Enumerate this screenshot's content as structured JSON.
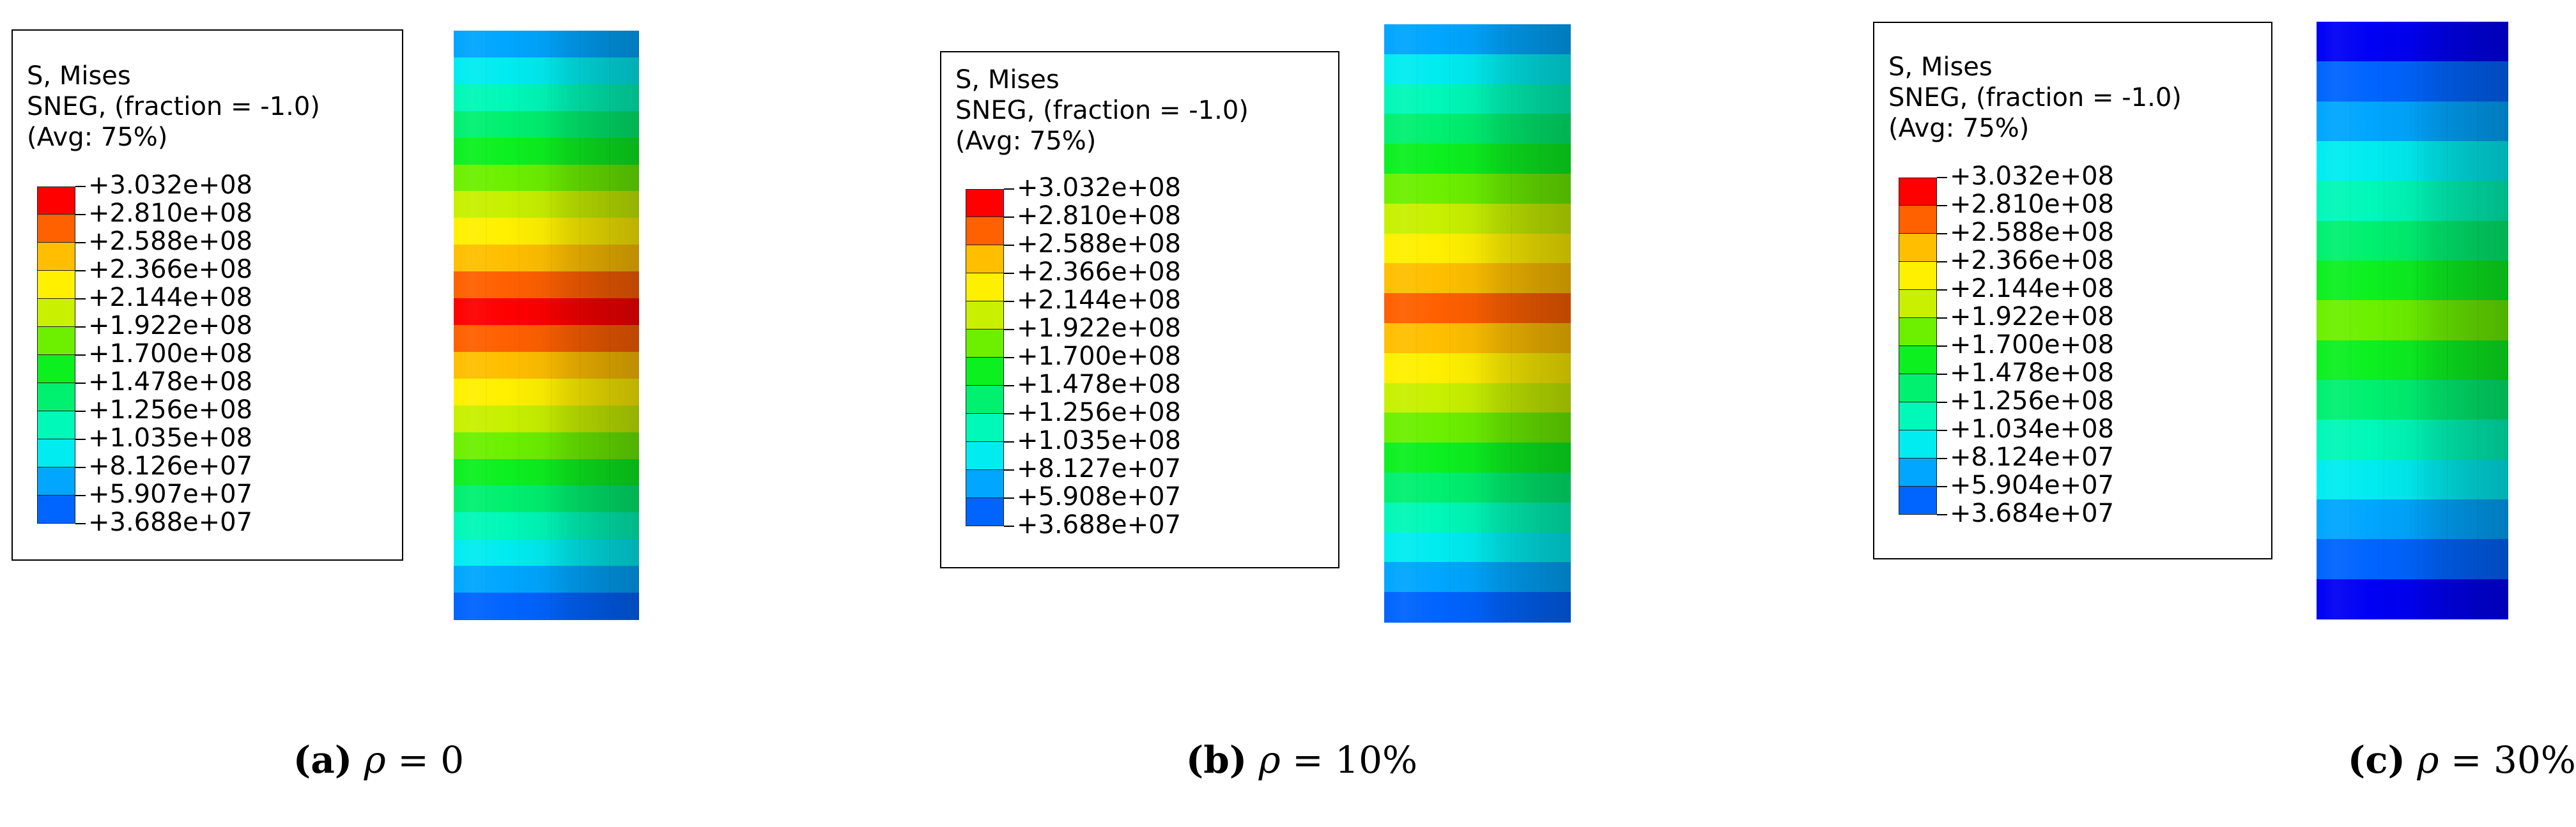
{
  "colors": {
    "c0": "#0000f5",
    "c1": "#0064ff",
    "c2": "#00a6ff",
    "c3": "#00ecf0",
    "c4": "#00f8b8",
    "c5": "#00f070",
    "c6": "#0cf020",
    "c7": "#6cf000",
    "c8": "#c8f000",
    "c9": "#fff000",
    "c10": "#ffbf00",
    "c11": "#ff6000",
    "c12": "#ff0000"
  },
  "panels": [
    {
      "legend": {
        "line1": "S, Mises",
        "line2": "SNEG, (fraction = -1.0)",
        "line3": "(Avg: 75%)",
        "values": [
          "+3.032e+08",
          "+2.810e+08",
          "+2.588e+08",
          "+2.366e+08",
          "+2.144e+08",
          "+1.922e+08",
          "+1.700e+08",
          "+1.478e+08",
          "+1.256e+08",
          "+1.035e+08",
          "+8.126e+07",
          "+5.907e+07",
          "+3.688e+07"
        ]
      },
      "caption": {
        "label": "(a)",
        "symbol": "ρ",
        "value": " = 0"
      },
      "contour_bands": [
        2,
        3,
        4,
        5,
        6,
        7,
        8,
        9,
        10,
        11,
        12,
        11,
        10,
        9,
        8,
        7,
        6,
        5,
        4,
        3,
        2,
        1
      ]
    },
    {
      "legend": {
        "line1": "S, Mises",
        "line2": "SNEG, (fraction = -1.0)",
        "line3": "(Avg: 75%)",
        "values": [
          "+3.032e+08",
          "+2.810e+08",
          "+2.588e+08",
          "+2.366e+08",
          "+2.144e+08",
          "+1.922e+08",
          "+1.700e+08",
          "+1.478e+08",
          "+1.256e+08",
          "+1.035e+08",
          "+8.127e+07",
          "+5.908e+07",
          "+3.688e+07"
        ]
      },
      "caption": {
        "label": "(b)",
        "symbol": "ρ",
        "value": " = 10%"
      },
      "contour_bands": [
        2,
        3,
        4,
        5,
        6,
        7,
        8,
        9,
        10,
        11,
        10,
        9,
        8,
        7,
        6,
        5,
        4,
        3,
        2,
        1
      ]
    },
    {
      "legend": {
        "line1": "S, Mises",
        "line2": "SNEG, (fraction = -1.0)",
        "line3": "(Avg: 75%)",
        "values": [
          "+3.032e+08",
          "+2.810e+08",
          "+2.588e+08",
          "+2.366e+08",
          "+2.144e+08",
          "+1.922e+08",
          "+1.700e+08",
          "+1.478e+08",
          "+1.256e+08",
          "+1.034e+08",
          "+8.124e+07",
          "+5.904e+07",
          "+3.684e+07"
        ]
      },
      "caption": {
        "label": "(c)",
        "symbol": "ρ",
        "value": " = 30%"
      },
      "contour_bands": [
        0,
        1,
        2,
        3,
        4,
        5,
        6,
        7,
        6,
        5,
        4,
        3,
        2,
        1,
        0
      ]
    }
  ]
}
